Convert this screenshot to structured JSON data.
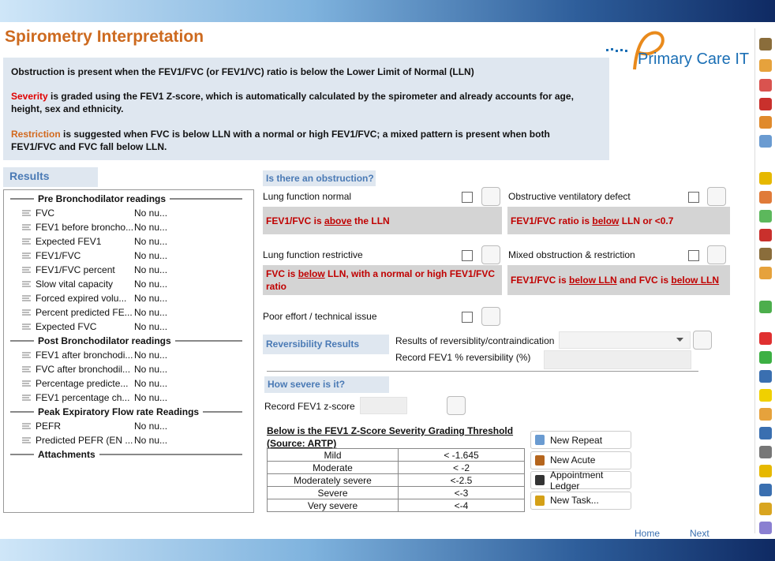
{
  "header": {
    "title": "Spirometry Interpretation",
    "logo": "Primary Care IT"
  },
  "intro": {
    "p1": "Obstruction is present when the FEV1/FVC (or FEV1/VC) ratio is below the Lower Limit of Normal (LLN)",
    "p2": [
      "Severity",
      " is graded using the FEV1 Z-score, which is automatically calculated by the spirometer and already accounts for age, height, sex and ethnicity."
    ],
    "p3": [
      "Restriction",
      " is suggested when FVC is below LLN with a normal or high FEV1/FVC; a mixed pattern is present when both FEV1/FVC and FVC fall below LLN."
    ]
  },
  "results": {
    "title": "Results",
    "groups": [
      {
        "heading": "Pre Bronchodilator readings",
        "items": [
          {
            "name": "FVC",
            "value": "No nu..."
          },
          {
            "name": "FEV1 before broncho...",
            "value": "No nu..."
          },
          {
            "name": "Expected FEV1",
            "value": "No nu..."
          },
          {
            "name": "FEV1/FVC",
            "value": "No nu..."
          },
          {
            "name": "FEV1/FVC percent",
            "value": "No nu..."
          },
          {
            "name": "Slow vital capacity",
            "value": "No nu..."
          },
          {
            "name": "Forced expired volu...",
            "value": "No nu..."
          },
          {
            "name": "Percent predicted FE...",
            "value": "No nu..."
          },
          {
            "name": "Expected FVC",
            "value": "No nu..."
          }
        ]
      },
      {
        "heading": "Post Bronchodilator readings",
        "items": [
          {
            "name": "FEV1 after bronchodi...",
            "value": "No nu..."
          },
          {
            "name": "FVC after bronchodil...",
            "value": "No nu..."
          },
          {
            "name": "Percentage predicte...",
            "value": "No nu..."
          },
          {
            "name": "FEV1 percentage ch...",
            "value": "No nu..."
          }
        ]
      },
      {
        "heading": "Peak Expiratory Flow rate Readings",
        "items": [
          {
            "name": "PEFR",
            "value": "No nu..."
          },
          {
            "name": "Predicted PEFR (EN ...",
            "value": "No nu..."
          }
        ]
      },
      {
        "heading": "Attachments",
        "items": []
      }
    ]
  },
  "obstruction": {
    "title": "Is there an obstruction?",
    "options": [
      {
        "label": "Lung function normal",
        "box": [
          "FEV1/FVC is ",
          "above",
          " the LLN"
        ]
      },
      {
        "label": "Obstructive ventilatory defect",
        "box": [
          "FEV1/FVC ratio is ",
          "below",
          " LLN or <0.7"
        ]
      },
      {
        "label": "Lung function restrictive",
        "box": [
          "FVC is ",
          "below",
          " LLN, with a normal or high FEV1/FVC ratio"
        ]
      },
      {
        "label": "Mixed obstruction & restriction",
        "box": [
          "FEV1/FVC is ",
          "below LLN",
          "  and FVC is ",
          "below LLN"
        ]
      },
      {
        "label": "Poor effort / technical issue"
      }
    ]
  },
  "reversibility": {
    "title": "Reversibility Results",
    "result_label": "Results of reversiblity/contraindication",
    "record_label": "Record FEV1 % reversibility (%)"
  },
  "severity": {
    "title": "How severe is it?",
    "record_label": "Record FEV1  z-score",
    "caption": "Below is the FEV1 Z-Score Severity Grading Threshold (Source: ARTP)",
    "table": {
      "rows": [
        [
          "Mild",
          "< -1.645"
        ],
        [
          "Moderate",
          "< -2"
        ],
        [
          "Moderately severe",
          "<-2.5"
        ],
        [
          "Severe",
          "<-3"
        ],
        [
          "Very severe",
          "<-4"
        ]
      ]
    }
  },
  "actions": [
    "New Repeat",
    "New Acute",
    "Appointment Ledger",
    "New Task..."
  ],
  "nav": {
    "home": "Home",
    "next": "Next"
  }
}
